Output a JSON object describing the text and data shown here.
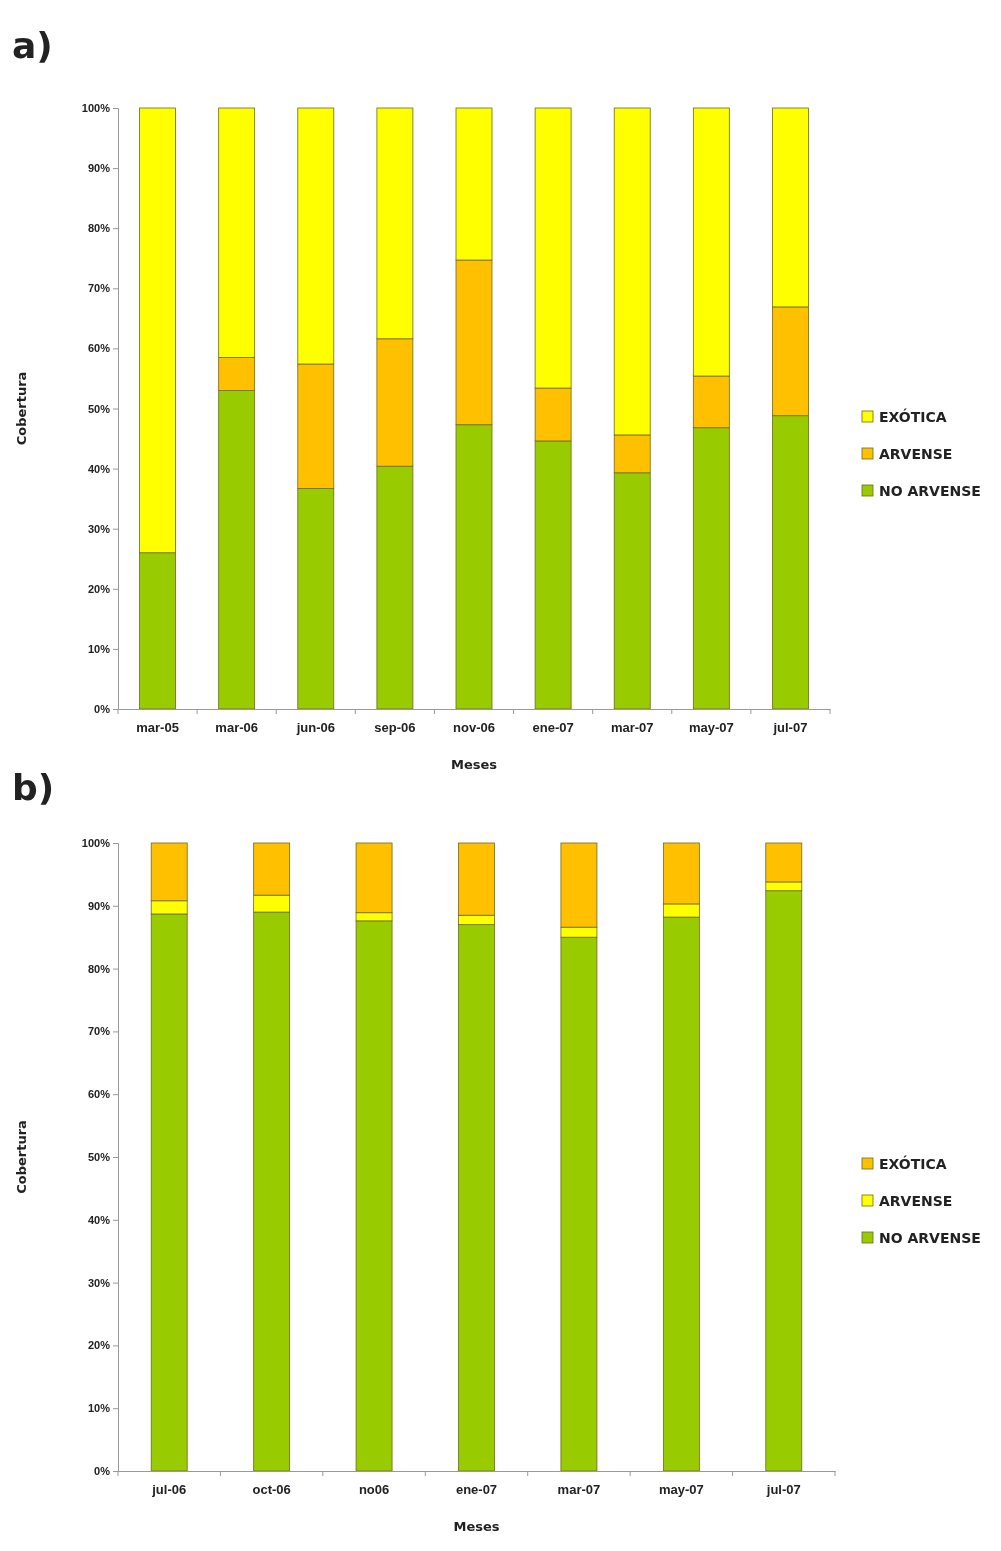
{
  "chart_data": [
    {
      "type": "bar",
      "title": "a)",
      "xlabel": "Meses",
      "ylabel": "Cobertura",
      "stacked": true,
      "legend": "right",
      "categories": [
        "mar-05",
        "mar-06",
        "jun-06",
        "sep-06",
        "nov-06",
        "ene-07",
        "mar-07",
        "may-07",
        "jul-07"
      ],
      "ylim": [
        0,
        100
      ],
      "yticks": [
        {
          "value": 0,
          "label": "0%"
        },
        {
          "value": 10,
          "label": "10%"
        },
        {
          "value": 20,
          "label": "20%"
        },
        {
          "value": 30,
          "label": "30%"
        },
        {
          "value": 40,
          "label": "40%"
        },
        {
          "value": 50,
          "label": "50%"
        },
        {
          "value": 60,
          "label": "60%"
        },
        {
          "value": 70,
          "label": "70%"
        },
        {
          "value": 80,
          "label": "80%"
        },
        {
          "value": 90,
          "label": "90%"
        },
        {
          "value": 100,
          "label": "100%"
        }
      ],
      "series": [
        {
          "name": "NO ARVENSE",
          "color": "#99cc00",
          "values": [
            26,
            53,
            36.7,
            40.4,
            47.3,
            44.6,
            39.3,
            46.8,
            48.8
          ]
        },
        {
          "name": "ARVENSE",
          "color": "#ffc000",
          "values": [
            null,
            5.5,
            20.7,
            21.2,
            27.4,
            8.8,
            6.3,
            8.6,
            18.1
          ]
        },
        {
          "name": "EXÓTICA",
          "color": "#ffff00",
          "values": [
            74,
            41.5,
            42.6,
            38.4,
            25.3,
            46.6,
            54.4,
            44.6,
            33.1
          ]
        }
      ]
    },
    {
      "type": "bar",
      "title": "b)",
      "xlabel": "Meses",
      "ylabel": "Cobertura",
      "stacked": true,
      "legend": "right",
      "categories": [
        "jul-06",
        "oct-06",
        "no06",
        "ene-07",
        "mar-07",
        "may-07",
        "jul-07"
      ],
      "ylim": [
        0,
        100
      ],
      "yticks": [
        {
          "value": 0,
          "label": "0%"
        },
        {
          "value": 10,
          "label": "10%"
        },
        {
          "value": 20,
          "label": "20%"
        },
        {
          "value": 30,
          "label": "30%"
        },
        {
          "value": 40,
          "label": "40%"
        },
        {
          "value": 50,
          "label": "50%"
        },
        {
          "value": 60,
          "label": "60%"
        },
        {
          "value": 70,
          "label": "70%"
        },
        {
          "value": 80,
          "label": "80%"
        },
        {
          "value": 90,
          "label": "90%"
        },
        {
          "value": 100,
          "label": "100%"
        }
      ],
      "series": [
        {
          "name": "NO ARVENSE",
          "color": "#99cc00",
          "values": [
            88.7,
            89,
            87.6,
            87,
            85,
            88.2,
            92.4
          ]
        },
        {
          "name": "ARVENSE",
          "color": "#ffff00",
          "values": [
            2.1,
            2.7,
            1.3,
            1.5,
            1.6,
            2.1,
            1.4
          ]
        },
        {
          "name": "EXÓTICA",
          "color": "#ffc000",
          "values": [
            9.2,
            8.3,
            11.1,
            11.5,
            13.4,
            9.7,
            6.2
          ]
        }
      ]
    }
  ]
}
